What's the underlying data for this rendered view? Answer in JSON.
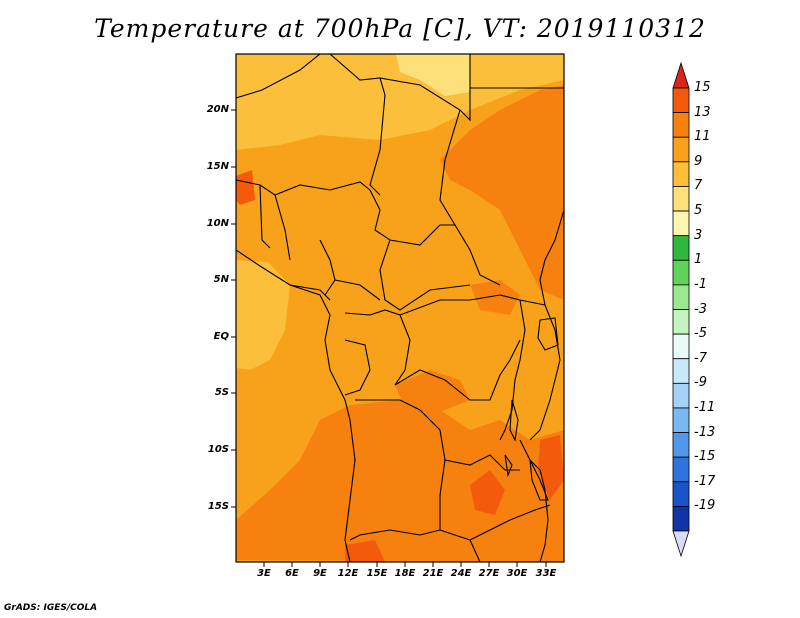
{
  "title": "Temperature at 700hPa [C], VT: 2019110312",
  "credit": "GrADS: IGES/COLA",
  "map": {
    "lat_ticks": [
      "20N",
      "15N",
      "10N",
      "5N",
      "EQ",
      "5S",
      "10S",
      "15S"
    ],
    "lon_ticks": [
      "3E",
      "6E",
      "9E",
      "12E",
      "15E",
      "18E",
      "21E",
      "24E",
      "27E",
      "30E",
      "33E"
    ],
    "field": "Temperature at 700hPa",
    "units": "C",
    "valid_time": "2019110312"
  },
  "colorbar": {
    "labels": [
      "15",
      "13",
      "11",
      "9",
      "7",
      "5",
      "3",
      "1",
      "-1",
      "-3",
      "-5",
      "-7",
      "-9",
      "-11",
      "-13",
      "-15",
      "-17",
      "-19"
    ],
    "colors": [
      "#f03a0a",
      "#f45a0c",
      "#f7810f",
      "#f8a21c",
      "#fbbf3c",
      "#fde07a",
      "#fef6b2",
      "#2fb83c",
      "#5fd35a",
      "#9be98f",
      "#c6f4c0",
      "#e8fbf6",
      "#c8e8fb",
      "#a5d3f7",
      "#7ab8f2",
      "#5198eb",
      "#2f74dc",
      "#1b54c8",
      "#1033a8",
      "#0a1b7a"
    ],
    "top_arrow_color": "#d8261e",
    "bottom_arrow_color": "#d8dcf6"
  }
}
